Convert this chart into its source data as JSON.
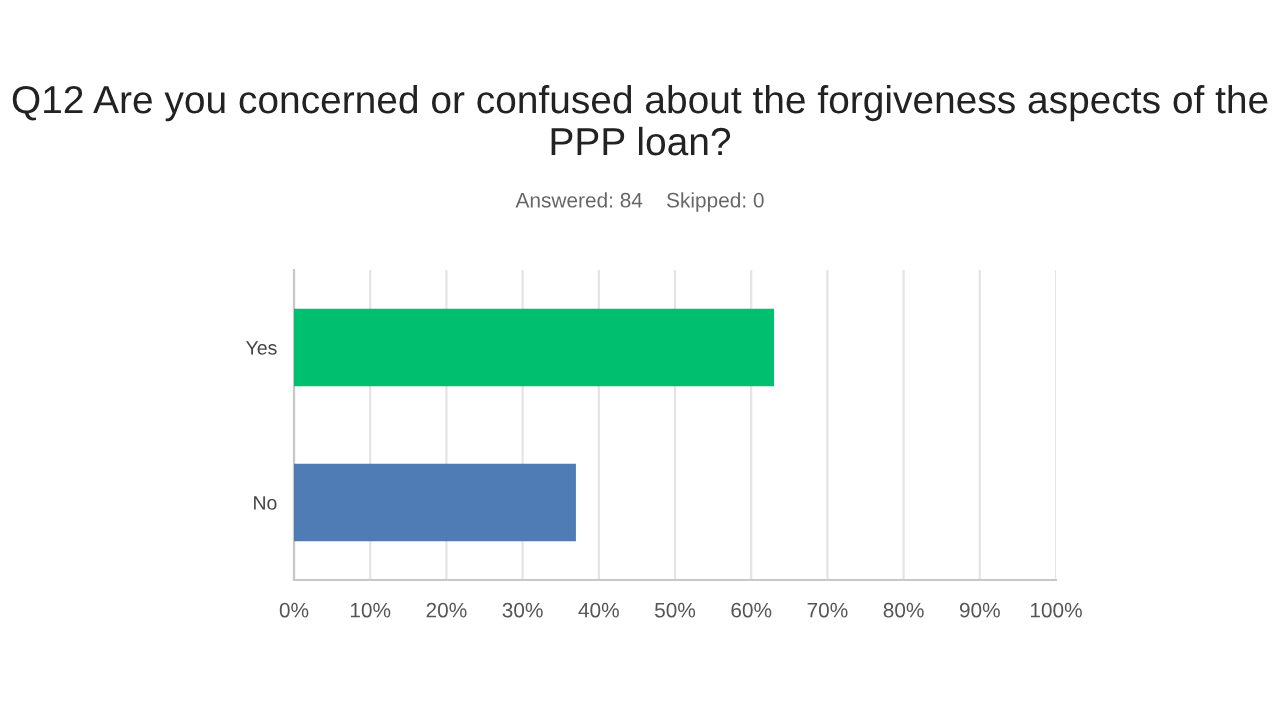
{
  "chart_data": {
    "type": "bar",
    "orientation": "horizontal",
    "title": "Q12 Are you concerned or confused about the forgiveness aspects of the PPP loan?",
    "subtitle": "Answered: 84    Skipped: 0",
    "categories": [
      "Yes",
      "No"
    ],
    "values": [
      63,
      37
    ],
    "colors": [
      "#00bf6f",
      "#507cb6"
    ],
    "xlim": [
      0,
      100
    ],
    "xticks": [
      {
        "value": 0,
        "label": "0%"
      },
      {
        "value": 10,
        "label": "10%"
      },
      {
        "value": 20,
        "label": "20%"
      },
      {
        "value": 30,
        "label": "30%"
      },
      {
        "value": 40,
        "label": "40%"
      },
      {
        "value": 50,
        "label": "50%"
      },
      {
        "value": 60,
        "label": "60%"
      },
      {
        "value": 70,
        "label": "70%"
      },
      {
        "value": 80,
        "label": "80%"
      },
      {
        "value": 90,
        "label": "90%"
      },
      {
        "value": 100,
        "label": "100%"
      }
    ],
    "grid": "x"
  }
}
